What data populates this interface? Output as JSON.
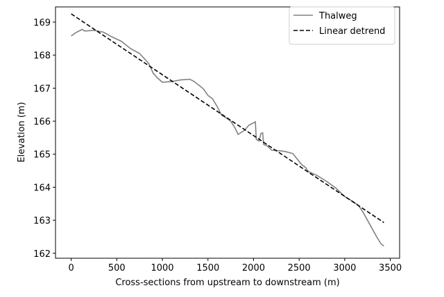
{
  "chart_data": {
    "type": "line",
    "xlabel": "Cross-sections from upstream to downstream (m)",
    "ylabel": "Elevation (m)",
    "xlim": [
      -172,
      3602
    ],
    "ylim": [
      161.85,
      169.46
    ],
    "xticks": [
      0,
      500,
      1000,
      1500,
      2000,
      2500,
      3000,
      3500
    ],
    "yticks": [
      162,
      163,
      164,
      165,
      166,
      167,
      168,
      169
    ],
    "legend": "upper right",
    "series": [
      {
        "name": "Thalweg",
        "color": "#808080",
        "dash": "solid",
        "x": [
          0,
          50,
          100,
          120,
          150,
          250,
          350,
          450,
          550,
          650,
          750,
          850,
          900,
          950,
          1000,
          1100,
          1200,
          1300,
          1350,
          1450,
          1500,
          1550,
          1600,
          1650,
          1700,
          1750,
          1800,
          1830,
          1900,
          1950,
          2000,
          2020,
          2030,
          2060,
          2080,
          2100,
          2110,
          2150,
          2200,
          2300,
          2350,
          2430,
          2480,
          2530,
          2570,
          2600,
          2700,
          2800,
          2900,
          3000,
          3100,
          3150,
          3200,
          3300,
          3350,
          3400,
          3430
        ],
        "values": [
          168.58,
          168.68,
          168.75,
          168.78,
          168.73,
          168.75,
          168.7,
          168.55,
          168.42,
          168.2,
          168.05,
          167.75,
          167.45,
          167.3,
          167.18,
          167.2,
          167.25,
          167.27,
          167.2,
          166.98,
          166.78,
          166.68,
          166.45,
          166.18,
          166.1,
          166.0,
          165.78,
          165.6,
          165.72,
          165.88,
          165.95,
          165.98,
          165.45,
          165.4,
          165.62,
          165.65,
          165.3,
          165.25,
          165.12,
          165.1,
          165.08,
          165.02,
          164.85,
          164.68,
          164.6,
          164.48,
          164.35,
          164.18,
          163.98,
          163.72,
          163.55,
          163.45,
          163.25,
          162.75,
          162.5,
          162.28,
          162.22
        ]
      },
      {
        "name": "Linear detrend",
        "color": "#000000",
        "dash": "dashed",
        "x": [
          0,
          3430
        ],
        "values": [
          169.25,
          162.93
        ]
      }
    ]
  }
}
